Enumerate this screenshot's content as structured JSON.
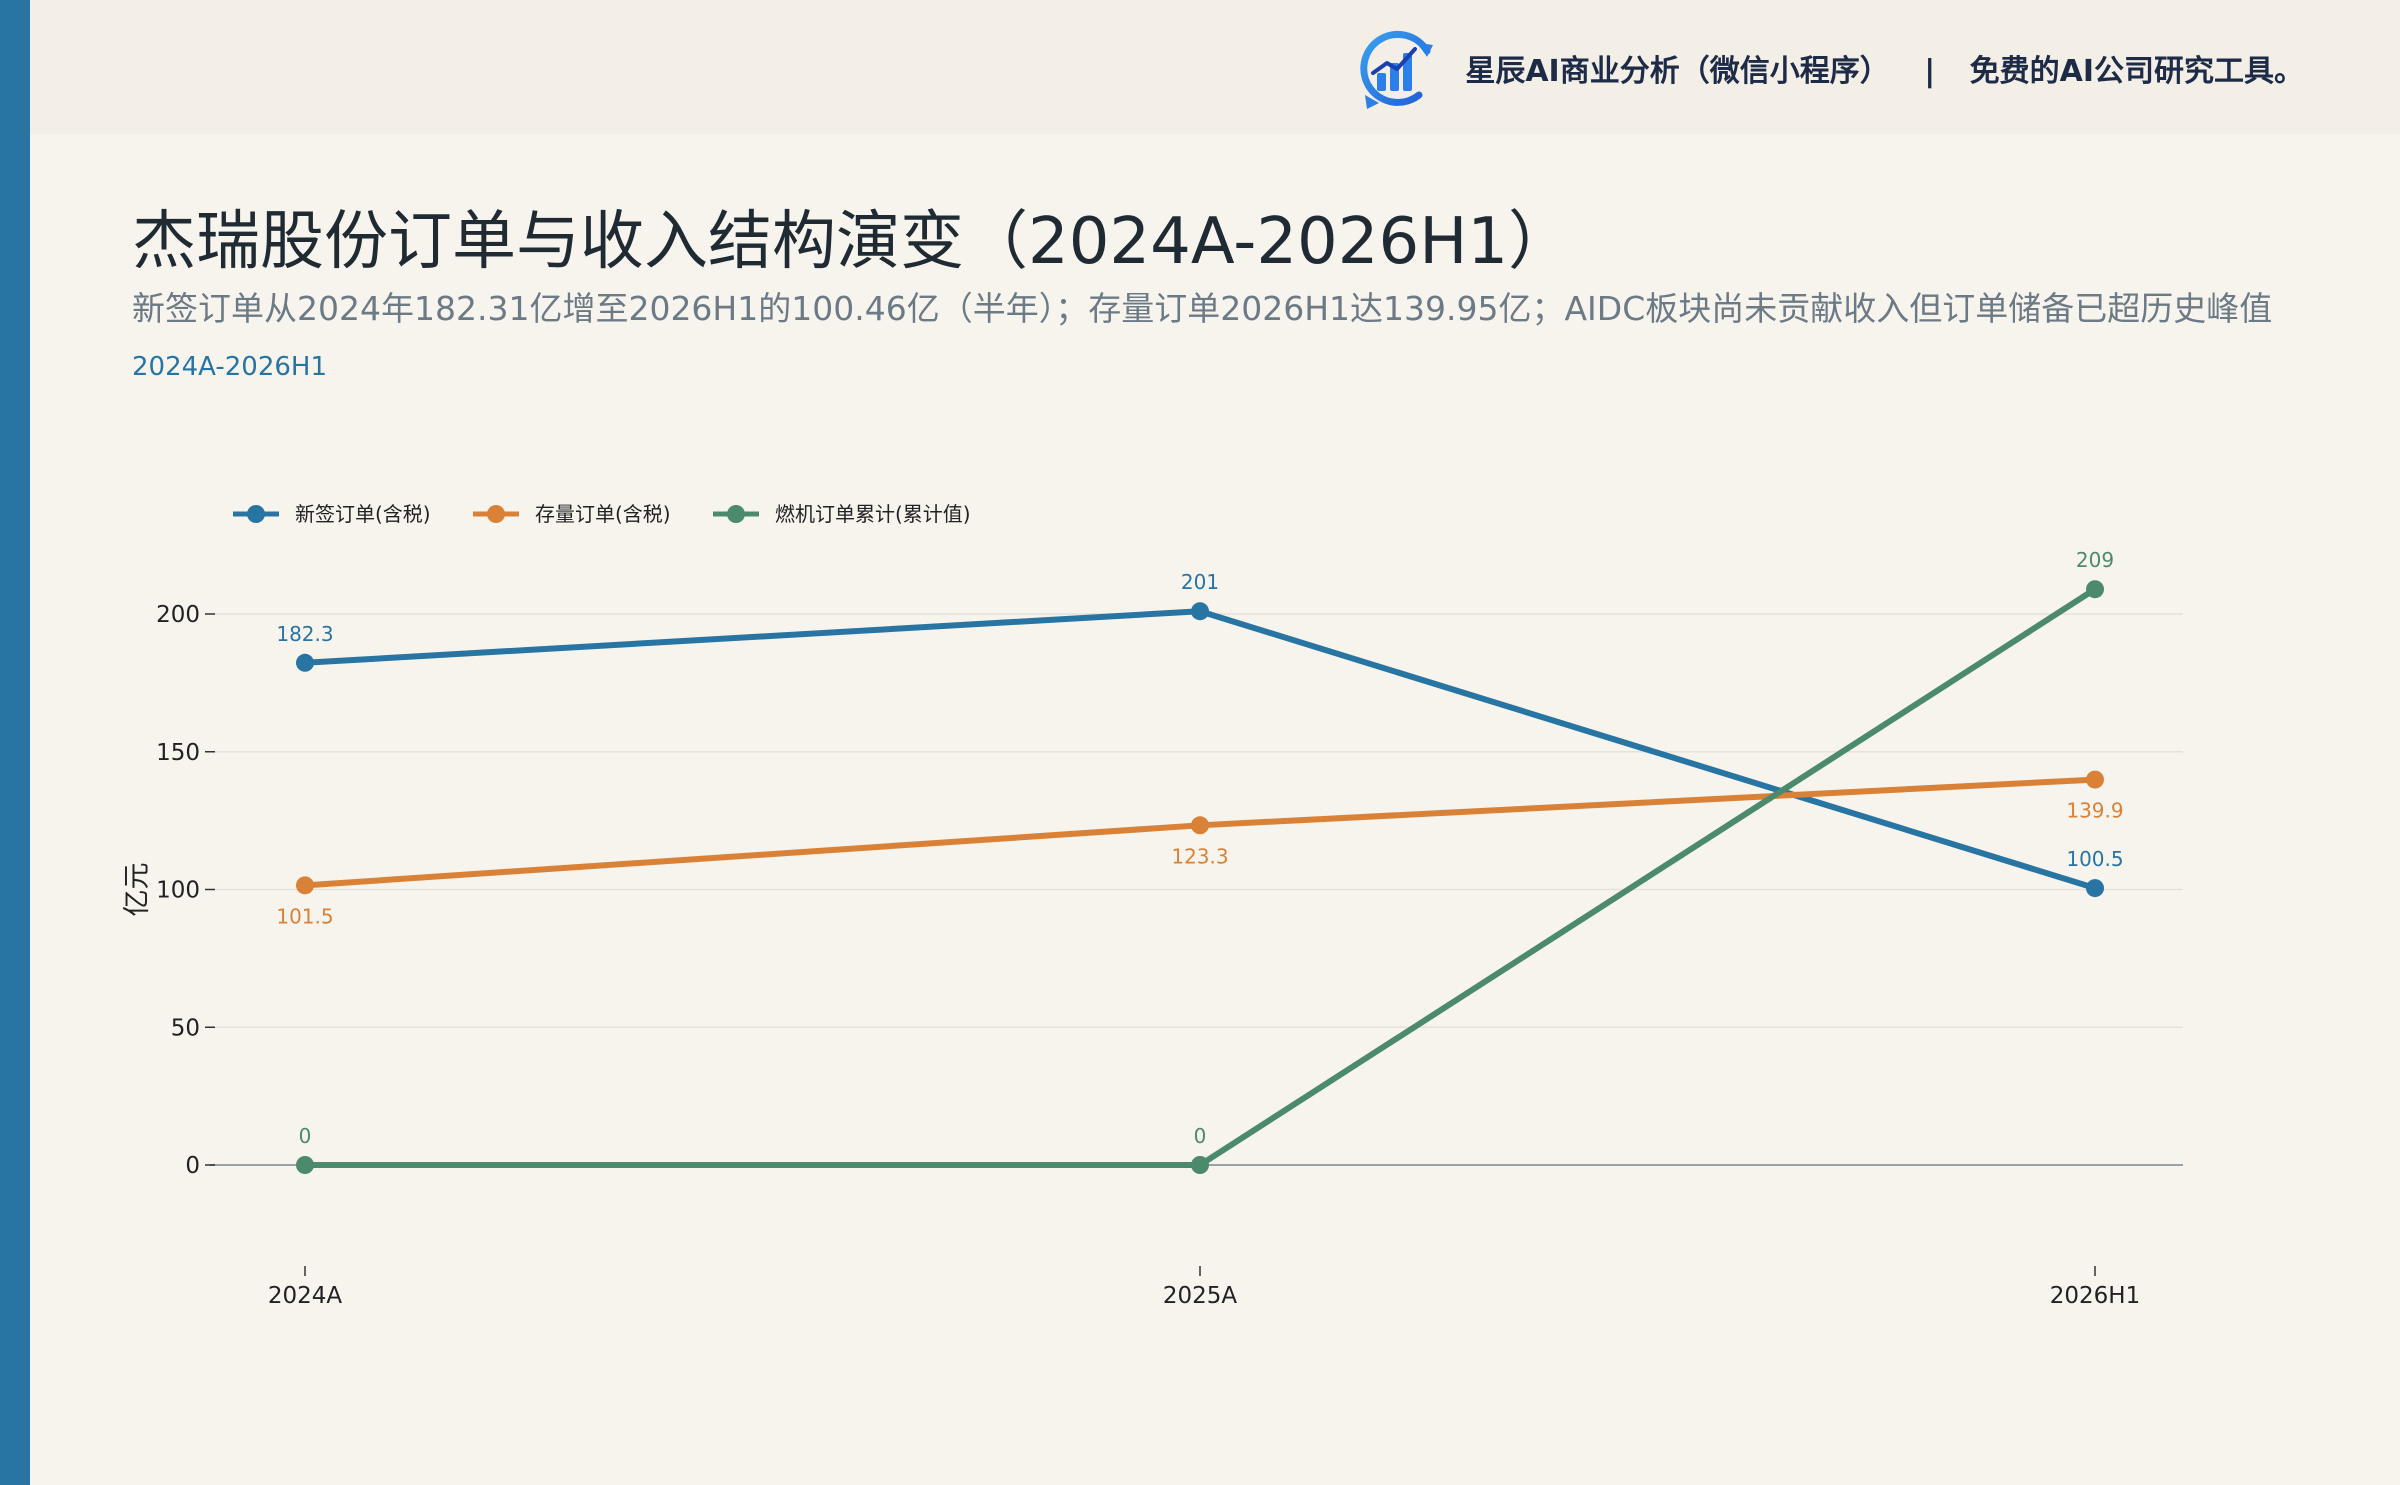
{
  "brand": {
    "name": "星辰AI商业分析（微信小程序）",
    "separator": "|",
    "tagline": "免费的AI公司研究工具。",
    "logo_icon": "rising-bar-chart-icon",
    "accent_color": "#2874a3"
  },
  "header": {
    "title": "杰瑞股份订单与收入结构演变（2024A-2026H1）",
    "subtitle": "新签订单从2024年182.31亿增至2026H1的100.46亿（半年）；存量订单2026H1达139.95亿；AIDC板块尚未贡献收入但订单储备已超历史峰值",
    "period": "2024A-2026H1"
  },
  "chart_data": {
    "type": "line",
    "categories": [
      "2024A",
      "2025A",
      "2026H1"
    ],
    "ylabel": "亿元",
    "ylim": [
      -40,
      220
    ],
    "yticks": [
      0,
      50,
      100,
      150,
      200
    ],
    "grid": "horizontal",
    "legend_position": "top-left",
    "series": [
      {
        "name": "新签订单(含税)",
        "color": "#2874a3",
        "values": [
          182.3,
          201,
          100.5
        ],
        "labels": [
          "182.3",
          "201",
          "100.5"
        ],
        "label_pos": [
          "above",
          "above",
          "above"
        ]
      },
      {
        "name": "存量订单(含税)",
        "color": "#d98237",
        "values": [
          101.5,
          123.3,
          139.9
        ],
        "labels": [
          "101.5",
          "123.3",
          "139.9"
        ],
        "label_pos": [
          "below",
          "below",
          "below"
        ]
      },
      {
        "name": "燃机订单累计(累计值)",
        "color": "#4b8a6b",
        "values": [
          0,
          0,
          209
        ],
        "labels": [
          "0",
          "0",
          "209"
        ],
        "label_pos": [
          "above",
          "above",
          "above"
        ]
      }
    ]
  }
}
